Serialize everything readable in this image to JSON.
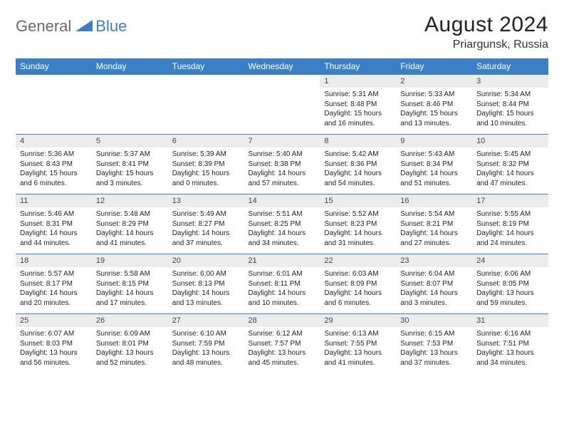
{
  "brand": {
    "part1": "General",
    "part2": "Blue"
  },
  "colors": {
    "accent": "#3b7fc4",
    "grey_row": "#ececec",
    "text": "#222222"
  },
  "title": "August 2024",
  "location": "Priargunsk, Russia",
  "day_headers": [
    "Sunday",
    "Monday",
    "Tuesday",
    "Wednesday",
    "Thursday",
    "Friday",
    "Saturday"
  ],
  "labels": {
    "sunrise": "Sunrise:",
    "sunset": "Sunset:",
    "daylight": "Daylight:"
  },
  "weeks": [
    [
      null,
      null,
      null,
      null,
      {
        "n": "1",
        "sunrise": "5:31 AM",
        "sunset": "8:48 PM",
        "daylight": "15 hours and 16 minutes."
      },
      {
        "n": "2",
        "sunrise": "5:33 AM",
        "sunset": "8:46 PM",
        "daylight": "15 hours and 13 minutes."
      },
      {
        "n": "3",
        "sunrise": "5:34 AM",
        "sunset": "8:44 PM",
        "daylight": "15 hours and 10 minutes."
      }
    ],
    [
      {
        "n": "4",
        "sunrise": "5:36 AM",
        "sunset": "8:43 PM",
        "daylight": "15 hours and 6 minutes."
      },
      {
        "n": "5",
        "sunrise": "5:37 AM",
        "sunset": "8:41 PM",
        "daylight": "15 hours and 3 minutes."
      },
      {
        "n": "6",
        "sunrise": "5:39 AM",
        "sunset": "8:39 PM",
        "daylight": "15 hours and 0 minutes."
      },
      {
        "n": "7",
        "sunrise": "5:40 AM",
        "sunset": "8:38 PM",
        "daylight": "14 hours and 57 minutes."
      },
      {
        "n": "8",
        "sunrise": "5:42 AM",
        "sunset": "8:36 PM",
        "daylight": "14 hours and 54 minutes."
      },
      {
        "n": "9",
        "sunrise": "5:43 AM",
        "sunset": "8:34 PM",
        "daylight": "14 hours and 51 minutes."
      },
      {
        "n": "10",
        "sunrise": "5:45 AM",
        "sunset": "8:32 PM",
        "daylight": "14 hours and 47 minutes."
      }
    ],
    [
      {
        "n": "11",
        "sunrise": "5:46 AM",
        "sunset": "8:31 PM",
        "daylight": "14 hours and 44 minutes."
      },
      {
        "n": "12",
        "sunrise": "5:48 AM",
        "sunset": "8:29 PM",
        "daylight": "14 hours and 41 minutes."
      },
      {
        "n": "13",
        "sunrise": "5:49 AM",
        "sunset": "8:27 PM",
        "daylight": "14 hours and 37 minutes."
      },
      {
        "n": "14",
        "sunrise": "5:51 AM",
        "sunset": "8:25 PM",
        "daylight": "14 hours and 34 minutes."
      },
      {
        "n": "15",
        "sunrise": "5:52 AM",
        "sunset": "8:23 PM",
        "daylight": "14 hours and 31 minutes."
      },
      {
        "n": "16",
        "sunrise": "5:54 AM",
        "sunset": "8:21 PM",
        "daylight": "14 hours and 27 minutes."
      },
      {
        "n": "17",
        "sunrise": "5:55 AM",
        "sunset": "8:19 PM",
        "daylight": "14 hours and 24 minutes."
      }
    ],
    [
      {
        "n": "18",
        "sunrise": "5:57 AM",
        "sunset": "8:17 PM",
        "daylight": "14 hours and 20 minutes."
      },
      {
        "n": "19",
        "sunrise": "5:58 AM",
        "sunset": "8:15 PM",
        "daylight": "14 hours and 17 minutes."
      },
      {
        "n": "20",
        "sunrise": "6:00 AM",
        "sunset": "8:13 PM",
        "daylight": "14 hours and 13 minutes."
      },
      {
        "n": "21",
        "sunrise": "6:01 AM",
        "sunset": "8:11 PM",
        "daylight": "14 hours and 10 minutes."
      },
      {
        "n": "22",
        "sunrise": "6:03 AM",
        "sunset": "8:09 PM",
        "daylight": "14 hours and 6 minutes."
      },
      {
        "n": "23",
        "sunrise": "6:04 AM",
        "sunset": "8:07 PM",
        "daylight": "14 hours and 3 minutes."
      },
      {
        "n": "24",
        "sunrise": "6:06 AM",
        "sunset": "8:05 PM",
        "daylight": "13 hours and 59 minutes."
      }
    ],
    [
      {
        "n": "25",
        "sunrise": "6:07 AM",
        "sunset": "8:03 PM",
        "daylight": "13 hours and 56 minutes."
      },
      {
        "n": "26",
        "sunrise": "6:09 AM",
        "sunset": "8:01 PM",
        "daylight": "13 hours and 52 minutes."
      },
      {
        "n": "27",
        "sunrise": "6:10 AM",
        "sunset": "7:59 PM",
        "daylight": "13 hours and 48 minutes."
      },
      {
        "n": "28",
        "sunrise": "6:12 AM",
        "sunset": "7:57 PM",
        "daylight": "13 hours and 45 minutes."
      },
      {
        "n": "29",
        "sunrise": "6:13 AM",
        "sunset": "7:55 PM",
        "daylight": "13 hours and 41 minutes."
      },
      {
        "n": "30",
        "sunrise": "6:15 AM",
        "sunset": "7:53 PM",
        "daylight": "13 hours and 37 minutes."
      },
      {
        "n": "31",
        "sunrise": "6:16 AM",
        "sunset": "7:51 PM",
        "daylight": "13 hours and 34 minutes."
      }
    ]
  ]
}
